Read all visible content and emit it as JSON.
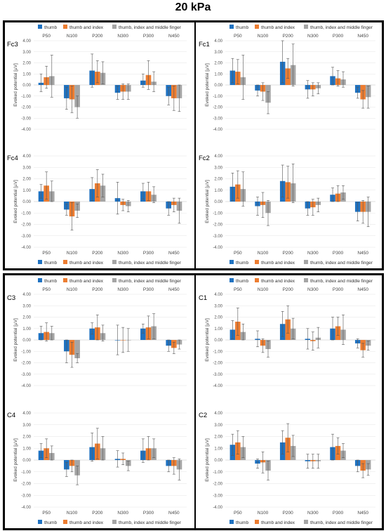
{
  "figure_title": "20 kPa",
  "colors": {
    "thumb": "#1f72c1",
    "thumb_index": "#ed7d31",
    "thumb_index_middle": "#a5a5a5"
  },
  "chart_data": [
    {
      "type": "bar",
      "id": "Fc3",
      "label": "Fc3",
      "categories": [
        "P50",
        "N100",
        "P200",
        "N300",
        "P300",
        "N450"
      ],
      "ylabel": "Evoked potential [µV]",
      "ylim": [
        -4,
        4
      ],
      "yticks": [
        "4.00",
        "3.00",
        "2.00",
        "1.00",
        "0.00",
        "-1.00",
        "-2.00",
        "-3.00",
        "-4.00"
      ],
      "legend": [
        "thumb",
        "thumb and index",
        "thumb, index and middle finger"
      ],
      "legend_position": "top",
      "series": [
        {
          "name": "thumb",
          "values": [
            0.2,
            -1.2,
            1.3,
            -0.7,
            0.4,
            -1.0
          ],
          "errors": [
            0.8,
            1.0,
            1.5,
            0.6,
            0.6,
            0.8
          ]
        },
        {
          "name": "thumb and index",
          "values": [
            0.7,
            -1.3,
            1.2,
            -0.6,
            0.9,
            -1.2
          ],
          "errors": [
            1.0,
            1.2,
            1.0,
            0.7,
            1.3,
            1.1
          ]
        },
        {
          "name": "thumb, index and middle finger",
          "values": [
            0.8,
            -2.0,
            1.1,
            -0.6,
            0.3,
            -1.2
          ],
          "errors": [
            1.9,
            1.0,
            1.0,
            0.7,
            0.9,
            1.2
          ]
        }
      ]
    },
    {
      "type": "bar",
      "id": "Fc1",
      "label": "Fc1",
      "categories": [
        "P50",
        "N100",
        "P200",
        "N300",
        "P300",
        "N450"
      ],
      "ylabel": "Evoked potential [µV]",
      "ylim": [
        -4,
        4
      ],
      "yticks": [
        "4.00",
        "3.00",
        "2.00",
        "1.00",
        "0.00",
        "-1.00",
        "-2.00",
        "-3.00",
        "-4.00"
      ],
      "legend": [
        "thumb",
        "thumb and index",
        "thumb, index and middle finger"
      ],
      "legend_position": "top",
      "series": [
        {
          "name": "thumb",
          "values": [
            1.3,
            -0.5,
            2.1,
            -0.4,
            0.8,
            -0.7
          ],
          "errors": [
            1.1,
            0.5,
            1.9,
            0.8,
            0.8,
            0.5
          ]
        },
        {
          "name": "thumb and index",
          "values": [
            1.2,
            -0.6,
            1.5,
            -0.4,
            0.6,
            -1.3
          ],
          "errors": [
            1.1,
            0.8,
            0.9,
            0.6,
            0.7,
            0.8
          ]
        },
        {
          "name": "thumb, index and middle finger",
          "values": [
            0.7,
            -1.6,
            1.8,
            -0.3,
            0.5,
            -1.1
          ],
          "errors": [
            2.0,
            1.0,
            1.9,
            0.5,
            0.7,
            1.0
          ]
        }
      ]
    },
    {
      "type": "bar",
      "id": "Fc4",
      "label": "Fc4",
      "categories": [
        "P50",
        "N100",
        "P200",
        "N300",
        "P300",
        "N450"
      ],
      "ylabel": "Evoked potential [µV]",
      "ylim": [
        -4,
        4
      ],
      "yticks": [
        "4.00",
        "3.00",
        "2.00",
        "1.00",
        "0.00",
        "-1.00",
        "-2.00",
        "-3.00",
        "-4.00"
      ],
      "legend": [
        "thumb",
        "thumb and index",
        "thumb, index and middle finger"
      ],
      "legend_position": "bottom",
      "series": [
        {
          "name": "thumb",
          "values": [
            0.9,
            -0.7,
            1.1,
            0.3,
            0.9,
            -0.6
          ],
          "errors": [
            0.6,
            0.5,
            1.0,
            1.4,
            0.7,
            0.6
          ]
        },
        {
          "name": "thumb and index",
          "values": [
            1.4,
            -1.3,
            1.6,
            -0.3,
            0.9,
            -0.3
          ],
          "errors": [
            1.2,
            1.2,
            1.2,
            0.5,
            0.8,
            0.6
          ]
        },
        {
          "name": "thumb, index and middle finger",
          "values": [
            0.9,
            -0.8,
            1.4,
            -0.4,
            0.6,
            -0.8
          ],
          "errors": [
            0.9,
            0.6,
            1.0,
            0.5,
            0.7,
            1.1
          ]
        }
      ]
    },
    {
      "type": "bar",
      "id": "Fc2",
      "label": "Fc2",
      "categories": [
        "P50",
        "N100",
        "P200",
        "N300",
        "P300",
        "N450"
      ],
      "ylabel": "Evoked potential [µV]",
      "ylim": [
        -4,
        4
      ],
      "yticks": [
        "4.00",
        "3.00",
        "2.00",
        "1.00",
        "0.00",
        "-1.00",
        "-2.00",
        "-3.00",
        "-4.00"
      ],
      "legend": [
        "thumb",
        "thumb and index",
        "thumb, index and middle finger"
      ],
      "legend_position": "bottom",
      "series": [
        {
          "name": "thumb",
          "values": [
            1.3,
            -0.4,
            1.8,
            -0.6,
            0.6,
            -0.9
          ],
          "errors": [
            1.2,
            0.8,
            1.4,
            0.6,
            0.6,
            0.8
          ]
        },
        {
          "name": "thumb and index",
          "values": [
            1.5,
            -0.3,
            1.7,
            -0.5,
            0.7,
            -0.9
          ],
          "errors": [
            1.2,
            1.1,
            1.4,
            0.7,
            0.7,
            1.0
          ]
        },
        {
          "name": "thumb, index and middle finger",
          "values": [
            1.1,
            -1.0,
            1.6,
            -0.3,
            0.8,
            -0.9
          ],
          "errors": [
            1.5,
            1.1,
            1.7,
            0.6,
            0.6,
            1.3
          ]
        }
      ]
    },
    {
      "type": "bar",
      "id": "C3",
      "label": "C3",
      "categories": [
        "P50",
        "N100",
        "P200",
        "N300",
        "P300",
        "N450"
      ],
      "ylabel": "Evoked potential [µV]",
      "ylim": [
        -4,
        4
      ],
      "yticks": [
        "4.00",
        "3.00",
        "2.00",
        "1.00",
        "0.00",
        "-1.00",
        "-2.00",
        "-3.00",
        "-4.00"
      ],
      "legend": [
        "thumb",
        "thumb and index",
        "thumb, index and middle finger"
      ],
      "legend_position": "top",
      "series": [
        {
          "name": "thumb",
          "values": [
            0.6,
            -1.0,
            1.0,
            0.0,
            1.0,
            -0.5
          ],
          "errors": [
            0.6,
            1.0,
            0.5,
            1.3,
            0.4,
            0.5
          ]
        },
        {
          "name": "thumb and index",
          "values": [
            0.7,
            -1.3,
            1.1,
            0.0,
            1.1,
            -0.7
          ],
          "errors": [
            0.8,
            1.1,
            1.1,
            1.1,
            1.0,
            0.5
          ]
        },
        {
          "name": "thumb, index and middle finger",
          "values": [
            0.6,
            -1.6,
            0.6,
            0.0,
            1.2,
            -0.4
          ],
          "errors": [
            0.6,
            0.4,
            0.7,
            1.0,
            1.1,
            0.4
          ]
        }
      ]
    },
    {
      "type": "bar",
      "id": "C1",
      "label": "C1",
      "categories": [
        "P50",
        "N100",
        "P200",
        "N300",
        "P300",
        "N450"
      ],
      "ylabel": "Evoked potential [µV]",
      "ylim": [
        -4,
        4
      ],
      "yticks": [
        "4.00",
        "3.00",
        "2.00",
        "1.00",
        "0.00",
        "-1.00",
        "-2.00",
        "-3.00",
        "-4.00"
      ],
      "legend": [
        "thumb",
        "thumb and index",
        "thumb, index and middle finger"
      ],
      "legend_position": "top",
      "series": [
        {
          "name": "thumb",
          "values": [
            0.9,
            0.1,
            1.4,
            0.1,
            1.0,
            -0.3
          ],
          "errors": [
            0.8,
            0.7,
            1.1,
            0.9,
            1.0,
            0.4
          ]
        },
        {
          "name": "thumb and index",
          "values": [
            1.6,
            -0.5,
            1.8,
            -0.1,
            1.2,
            -0.9
          ],
          "errors": [
            1.2,
            0.6,
            1.2,
            0.8,
            0.8,
            0.6
          ]
        },
        {
          "name": "thumb, index and middle finger",
          "values": [
            0.7,
            -0.8,
            1.0,
            0.2,
            0.9,
            -0.5
          ],
          "errors": [
            0.7,
            0.7,
            0.9,
            0.9,
            1.3,
            0.4
          ]
        }
      ]
    },
    {
      "type": "bar",
      "id": "C4",
      "label": "C4",
      "categories": [
        "P50",
        "N100",
        "P200",
        "N300",
        "P300",
        "N450"
      ],
      "ylabel": "Evoked potential [µV]",
      "ylim": [
        -4,
        4
      ],
      "yticks": [
        "4.00",
        "3.00",
        "2.00",
        "1.00",
        "0.00",
        "-1.00",
        "-2.00",
        "-3.00",
        "-4.00"
      ],
      "legend": [
        "thumb",
        "thumb and index",
        "thumb, index and middle finger"
      ],
      "legend_position": "bottom",
      "series": [
        {
          "name": "thumb",
          "values": [
            0.8,
            -0.8,
            1.1,
            0.1,
            0.8,
            -0.5
          ],
          "errors": [
            0.6,
            0.6,
            1.2,
            0.7,
            1.0,
            0.5
          ]
        },
        {
          "name": "thumb and index",
          "values": [
            1.0,
            -0.5,
            1.4,
            0.1,
            1.0,
            -0.5
          ],
          "errors": [
            0.8,
            0.5,
            1.3,
            0.5,
            1.0,
            0.7
          ]
        },
        {
          "name": "thumb, index and middle finger",
          "values": [
            0.6,
            -1.3,
            1.0,
            -0.5,
            1.0,
            -0.8
          ],
          "errors": [
            0.6,
            0.8,
            1.0,
            0.4,
            0.8,
            0.9
          ]
        }
      ]
    },
    {
      "type": "bar",
      "id": "C2",
      "label": "C2",
      "categories": [
        "P50",
        "N100",
        "P200",
        "N300",
        "P300",
        "N450"
      ],
      "ylabel": "Evoked potential [µV]",
      "ylim": [
        -4,
        4
      ],
      "yticks": [
        "4.00",
        "3.00",
        "2.00",
        "1.00",
        "0.00",
        "-1.00",
        "-2.00",
        "-3.00",
        "-4.00"
      ],
      "legend": [
        "thumb",
        "thumb and index",
        "thumb, index and middle finger"
      ],
      "legend_position": "bottom",
      "series": [
        {
          "name": "thumb",
          "values": [
            1.3,
            -0.3,
            1.5,
            -0.1,
            1.1,
            -0.5
          ],
          "errors": [
            0.9,
            0.4,
            1.0,
            0.6,
            1.1,
            0.5
          ]
        },
        {
          "name": "thumb and index",
          "values": [
            1.5,
            -0.2,
            1.9,
            -0.1,
            1.2,
            -0.9
          ],
          "errors": [
            1.0,
            0.9,
            1.2,
            0.6,
            0.7,
            0.6
          ]
        },
        {
          "name": "thumb, index and middle finger",
          "values": [
            1.1,
            -0.9,
            1.2,
            -0.1,
            0.8,
            -0.8
          ],
          "errors": [
            0.9,
            0.8,
            0.9,
            0.6,
            0.6,
            0.5
          ]
        }
      ]
    }
  ]
}
